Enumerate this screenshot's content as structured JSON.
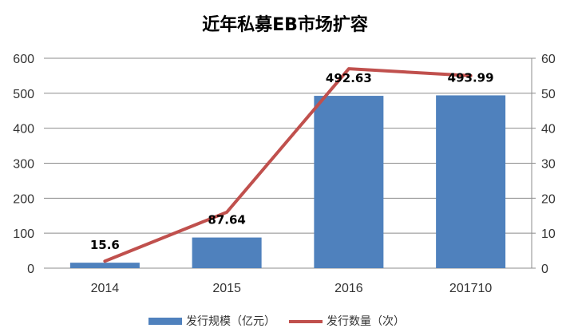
{
  "chart_data": {
    "type": "bar",
    "title": "近年私募EB市场扩容",
    "categories": [
      "2014",
      "2015",
      "2016",
      "201710"
    ],
    "series": [
      {
        "name": "发行规模（亿元）",
        "type": "bar",
        "axis": "left",
        "values": [
          15.6,
          87.64,
          492.63,
          493.99
        ],
        "data_labels": [
          "15.6",
          "87.64",
          "492.63",
          "493.99"
        ],
        "color": "#4f81bd"
      },
      {
        "name": "发行数量（次）",
        "type": "line",
        "axis": "right",
        "values": [
          2,
          16,
          57,
          55
        ],
        "color": "#c0504d"
      }
    ],
    "y_left": {
      "ylim": [
        0,
        600
      ],
      "ticks": [
        "0",
        "100",
        "200",
        "300",
        "400",
        "500",
        "600"
      ]
    },
    "y_right": {
      "ylim": [
        0,
        60
      ],
      "ticks": [
        "0",
        "10",
        "20",
        "30",
        "40",
        "50",
        "60"
      ]
    },
    "grid": true,
    "legend_position": "bottom"
  }
}
